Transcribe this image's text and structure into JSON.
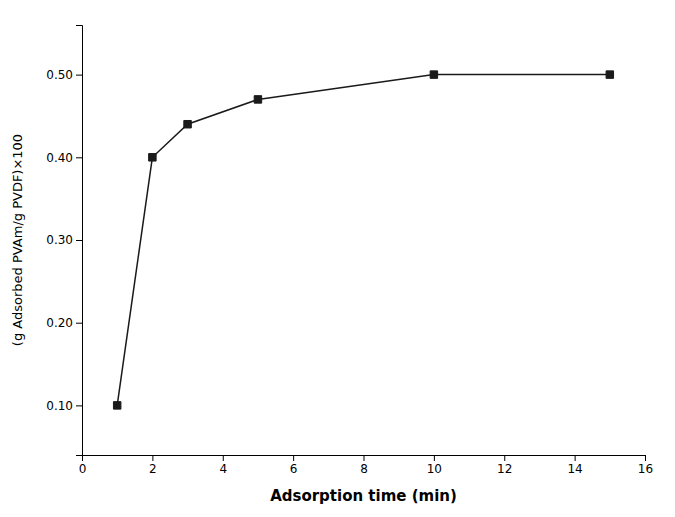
{
  "chart_data": {
    "type": "line",
    "x": [
      1,
      2,
      3,
      5,
      10,
      15
    ],
    "values": [
      0.1,
      0.4,
      0.44,
      0.47,
      0.5,
      0.5
    ],
    "xlabel": "Adsorption time (min)",
    "ylabel": "(g Adsorbed PVAm/g PVDF)×100",
    "xlim": [
      0,
      16
    ],
    "ylim": [
      0.04,
      0.56
    ],
    "xticks": [
      0,
      2,
      4,
      6,
      8,
      10,
      12,
      14,
      16
    ],
    "yticks": [
      {
        "value": 0.1,
        "label": "0.10"
      },
      {
        "value": 0.2,
        "label": "0.20"
      },
      {
        "value": 0.3,
        "label": "0.30"
      },
      {
        "value": 0.4,
        "label": "0.40"
      },
      {
        "value": 0.5,
        "label": "0.50"
      }
    ],
    "color": "#1a1a1a",
    "marker": "square",
    "line_style": "solid",
    "grid": false
  }
}
